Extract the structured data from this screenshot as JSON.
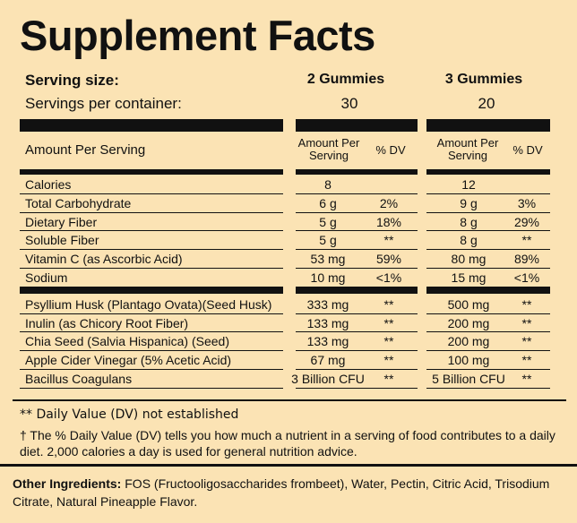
{
  "title": "Supplement Facts",
  "serving_size": {
    "label": "Serving size:",
    "columns": [
      "2 Gummies",
      "3 Gummies"
    ]
  },
  "servings_per_container": {
    "label": "Servings per container:",
    "columns": [
      "30",
      "20"
    ]
  },
  "table": {
    "header": {
      "label": "Amount Per Serving",
      "columns": [
        {
          "amount": "Amount Per Serving",
          "dv": "% DV"
        },
        {
          "amount": "Amount Per Serving",
          "dv": "% DV"
        }
      ]
    },
    "groups": [
      [
        {
          "name": "Calories",
          "columns": [
            {
              "amount": "8"
            },
            {
              "amount": "12"
            }
          ]
        },
        {
          "name": "Total Carbohydrate",
          "columns": [
            {
              "amount": "6 g",
              "dv": "2%"
            },
            {
              "amount": "9 g",
              "dv": "3%"
            }
          ]
        },
        {
          "name": "Dietary Fiber",
          "columns": [
            {
              "amount": "5 g",
              "dv": "18%"
            },
            {
              "amount": "8 g",
              "dv": "29%"
            }
          ]
        },
        {
          "name": "Soluble Fiber",
          "columns": [
            {
              "amount": "5 g",
              "dv": "**"
            },
            {
              "amount": "8 g",
              "dv": "**"
            }
          ]
        },
        {
          "name": "Vitamin C (as Ascorbic Acid)",
          "columns": [
            {
              "amount": "53 mg",
              "dv": "59%"
            },
            {
              "amount": "80 mg",
              "dv": "89%"
            }
          ]
        },
        {
          "name": "Sodium",
          "columns": [
            {
              "amount": "10 mg",
              "dv": "<1%"
            },
            {
              "amount": "15 mg",
              "dv": "<1%"
            }
          ]
        }
      ],
      [
        {
          "name": "Psyllium Husk (Plantago Ovata)(Seed Husk)",
          "columns": [
            {
              "amount": "333 mg",
              "dv": "**"
            },
            {
              "amount": "500 mg",
              "dv": "**"
            }
          ]
        },
        {
          "name": "Inulin (as Chicory Root Fiber)",
          "columns": [
            {
              "amount": "133 mg",
              "dv": "**"
            },
            {
              "amount": "200 mg",
              "dv": "**"
            }
          ]
        },
        {
          "name": "Chia Seed (Salvia Hispanica) (Seed)",
          "columns": [
            {
              "amount": "133 mg",
              "dv": "**"
            },
            {
              "amount": "200 mg",
              "dv": "**"
            }
          ]
        },
        {
          "name": "Apple Cider Vinegar (5% Acetic Acid)",
          "columns": [
            {
              "amount": "67 mg",
              "dv": "**"
            },
            {
              "amount": "100 mg",
              "dv": "**"
            }
          ]
        },
        {
          "name": "Bacillus Coagulans",
          "columns": [
            {
              "amount": "3 Billion CFU",
              "dv": "**"
            },
            {
              "amount": "5 Billion CFU",
              "dv": "**"
            }
          ]
        }
      ]
    ]
  },
  "footnotes": [
    "** Daily Value (DV) not established",
    "† The % Daily Value (DV) tells you how much a nutrient in a serving of food contributes to a daily diet. 2,000 calories a day is used for general nutrition advice."
  ],
  "other_ingredients": {
    "label": "Other Ingredients:",
    "text": "FOS (Fructooligosaccharides frombeet), Water, Pectin, Citric Acid, Trisodium Citrate, Natural Pineapple Flavor."
  }
}
